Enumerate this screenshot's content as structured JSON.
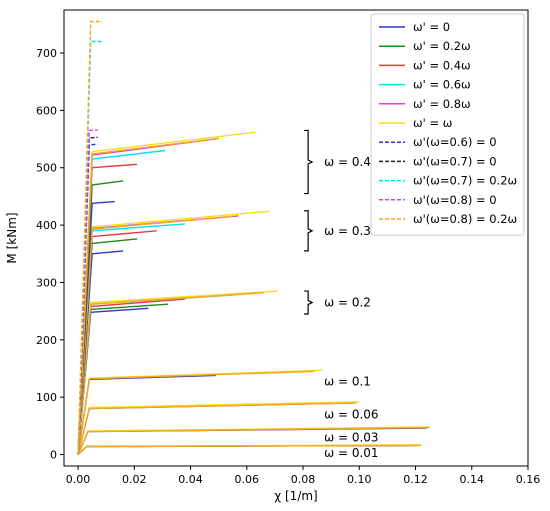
{
  "chart_data": {
    "type": "line",
    "xlabel": "χ [1/m]",
    "ylabel": "M [kNm]",
    "xlim": [
      -0.005,
      0.16
    ],
    "ylim": [
      -20,
      775
    ],
    "xticks": [
      "0.00",
      "0.02",
      "0.04",
      "0.06",
      "0.08",
      "0.10",
      "0.12",
      "0.14",
      "0.16"
    ],
    "yticks": [
      "0",
      "100",
      "200",
      "300",
      "400",
      "500",
      "600",
      "700"
    ],
    "xtick_values": [
      0,
      0.02,
      0.04,
      0.06,
      0.08,
      0.1,
      0.12,
      0.14,
      0.16
    ],
    "ytick_values": [
      0,
      100,
      200,
      300,
      400,
      500,
      600,
      700
    ],
    "grid": false,
    "legend_position": "top-right",
    "legend": [
      {
        "label": "ω' = 0",
        "color": "#3333cc",
        "style": "solid"
      },
      {
        "label": "ω' = 0.2ω",
        "color": "#1a8c1a",
        "style": "solid"
      },
      {
        "label": "ω' = 0.4ω",
        "color": "#e83a3a",
        "style": "solid"
      },
      {
        "label": "ω' = 0.6ω",
        "color": "#00e5e5",
        "style": "solid"
      },
      {
        "label": "ω' = 0.8ω",
        "color": "#e040e0",
        "style": "solid"
      },
      {
        "label": "ω' = ω",
        "color": "#f2e020",
        "style": "solid"
      },
      {
        "label": "ω'(ω=0.6) = 0",
        "color": "#3333cc",
        "style": "dashed"
      },
      {
        "label": "ω'(ω=0.7) = 0",
        "color": "#222222",
        "style": "dashed"
      },
      {
        "label": "ω'(ω=0.7) = 0.2ω",
        "color": "#00e5e5",
        "style": "dashed"
      },
      {
        "label": "ω'(ω=0.8) = 0",
        "color": "#e040e0",
        "style": "dashed"
      },
      {
        "label": "ω'(ω=0.8) = 0.2ω",
        "color": "#f5a623",
        "style": "dashed"
      }
    ],
    "annotations": [
      {
        "text": "ω = 0.4",
        "x": 0.0875,
        "y": 510,
        "bracket": [
          455,
          565
        ]
      },
      {
        "text": "ω = 0.3",
        "x": 0.0875,
        "y": 390,
        "bracket": [
          355,
          425
        ]
      },
      {
        "text": "ω = 0.2",
        "x": 0.0875,
        "y": 265,
        "bracket": [
          245,
          285
        ]
      },
      {
        "text": "ω = 0.1",
        "x": 0.0875,
        "y": 127
      },
      {
        "text": "ω = 0.06",
        "x": 0.0875,
        "y": 70
      },
      {
        "text": "ω = 0.03",
        "x": 0.0875,
        "y": 30
      },
      {
        "text": "ω = 0.01",
        "x": 0.0875,
        "y": 3
      }
    ],
    "series": [
      {
        "group": "ω = 0.01",
        "color": "#3333cc",
        "style": "solid",
        "x": [
          0,
          0.003,
          0.12
        ],
        "y": [
          0,
          14,
          16
        ]
      },
      {
        "group": "ω = 0.01",
        "color": "#1a8c1a",
        "style": "solid",
        "x": [
          0,
          0.003,
          0.121
        ],
        "y": [
          0,
          14,
          16
        ]
      },
      {
        "group": "ω = 0.01",
        "color": "#f2e020",
        "style": "solid",
        "x": [
          0,
          0.003,
          0.122
        ],
        "y": [
          0,
          14,
          17
        ]
      },
      {
        "group": "ω = 0.01",
        "color": "#f5a623",
        "style": "solid",
        "x": [
          0,
          0.003,
          0.122
        ],
        "y": [
          0,
          14,
          16
        ]
      },
      {
        "group": "ω = 0.03",
        "color": "#3333cc",
        "style": "solid",
        "x": [
          0,
          0.0035,
          0.124
        ],
        "y": [
          0,
          40,
          46
        ]
      },
      {
        "group": "ω = 0.03",
        "color": "#f2e020",
        "style": "solid",
        "x": [
          0,
          0.0035,
          0.125
        ],
        "y": [
          0,
          41,
          48
        ]
      },
      {
        "group": "ω = 0.03",
        "color": "#f5a623",
        "style": "solid",
        "x": [
          0,
          0.0035,
          0.125
        ],
        "y": [
          0,
          40,
          47
        ]
      },
      {
        "group": "ω = 0.06",
        "color": "#3333cc",
        "style": "solid",
        "x": [
          0,
          0.004,
          0.098
        ],
        "y": [
          0,
          80,
          90
        ]
      },
      {
        "group": "ω = 0.06",
        "color": "#f2e020",
        "style": "solid",
        "x": [
          0,
          0.004,
          0.1
        ],
        "y": [
          0,
          82,
          92
        ]
      },
      {
        "group": "ω = 0.06",
        "color": "#f5a623",
        "style": "solid",
        "x": [
          0,
          0.004,
          0.099
        ],
        "y": [
          0,
          80,
          90
        ]
      },
      {
        "group": "ω = 0.1",
        "color": "#3333cc",
        "style": "solid",
        "x": [
          0,
          0.004,
          0.049
        ],
        "y": [
          0,
          131,
          138
        ]
      },
      {
        "group": "ω = 0.1",
        "color": "#f2e020",
        "style": "solid",
        "x": [
          0,
          0.004,
          0.087
        ],
        "y": [
          0,
          133,
          147
        ]
      },
      {
        "group": "ω = 0.1",
        "color": "#f5a623",
        "style": "solid",
        "x": [
          0,
          0.004,
          0.084
        ],
        "y": [
          0,
          132,
          145
        ]
      },
      {
        "group": "ω = 0.2",
        "color": "#3333cc",
        "style": "solid",
        "x": [
          0,
          0.0045,
          0.025
        ],
        "y": [
          0,
          248,
          255
        ]
      },
      {
        "group": "ω = 0.2",
        "color": "#1a8c1a",
        "style": "solid",
        "x": [
          0,
          0.0045,
          0.032
        ],
        "y": [
          0,
          253,
          262
        ]
      },
      {
        "group": "ω = 0.2",
        "color": "#e83a3a",
        "style": "solid",
        "x": [
          0,
          0.0045,
          0.038
        ],
        "y": [
          0,
          258,
          271
        ]
      },
      {
        "group": "ω = 0.2",
        "color": "#00e5e5",
        "style": "solid",
        "x": [
          0,
          0.0045,
          0.055
        ],
        "y": [
          0,
          262,
          278
        ]
      },
      {
        "group": "ω = 0.2",
        "color": "#f2e020",
        "style": "solid",
        "x": [
          0,
          0.0045,
          0.071
        ],
        "y": [
          0,
          265,
          285
        ]
      },
      {
        "group": "ω = 0.2",
        "color": "#f5a623",
        "style": "solid",
        "x": [
          0,
          0.0045,
          0.066
        ],
        "y": [
          0,
          262,
          282
        ]
      },
      {
        "group": "ω = 0.3",
        "color": "#3333cc",
        "style": "solid",
        "x": [
          0,
          0.005,
          0.016
        ],
        "y": [
          0,
          350,
          355
        ]
      },
      {
        "group": "ω = 0.3",
        "color": "#1a8c1a",
        "style": "solid",
        "x": [
          0,
          0.005,
          0.021
        ],
        "y": [
          0,
          368,
          376
        ]
      },
      {
        "group": "ω = 0.3",
        "color": "#e83a3a",
        "style": "solid",
        "x": [
          0,
          0.005,
          0.028
        ],
        "y": [
          0,
          380,
          390
        ]
      },
      {
        "group": "ω = 0.3",
        "color": "#00e5e5",
        "style": "solid",
        "x": [
          0,
          0.005,
          0.038
        ],
        "y": [
          0,
          390,
          402
        ]
      },
      {
        "group": "ω = 0.3",
        "color": "#e040e0",
        "style": "solid",
        "x": [
          0,
          0.005,
          0.057
        ],
        "y": [
          0,
          394,
          416
        ]
      },
      {
        "group": "ω = 0.3",
        "color": "#f2e020",
        "style": "solid",
        "x": [
          0,
          0.005,
          0.068
        ],
        "y": [
          0,
          397,
          424
        ]
      },
      {
        "group": "ω = 0.3",
        "color": "#f5a623",
        "style": "solid",
        "x": [
          0,
          0.005,
          0.055
        ],
        "y": [
          0,
          393,
          415
        ]
      },
      {
        "group": "ω = 0.4",
        "color": "#3333cc",
        "style": "solid",
        "x": [
          0,
          0.005,
          0.013
        ],
        "y": [
          0,
          438,
          441
        ]
      },
      {
        "group": "ω = 0.4",
        "color": "#1a8c1a",
        "style": "solid",
        "x": [
          0,
          0.005,
          0.016
        ],
        "y": [
          0,
          470,
          477
        ]
      },
      {
        "group": "ω = 0.4",
        "color": "#e83a3a",
        "style": "solid",
        "x": [
          0,
          0.005,
          0.021
        ],
        "y": [
          0,
          500,
          506
        ]
      },
      {
        "group": "ω = 0.4",
        "color": "#00e5e5",
        "style": "solid",
        "x": [
          0,
          0.005,
          0.031
        ],
        "y": [
          0,
          515,
          530
        ]
      },
      {
        "group": "ω = 0.4",
        "color": "#e040e0",
        "style": "solid",
        "x": [
          0,
          0.005,
          0.05
        ],
        "y": [
          0,
          522,
          551
        ]
      },
      {
        "group": "ω = 0.4",
        "color": "#f2e020",
        "style": "solid",
        "x": [
          0,
          0.005,
          0.063
        ],
        "y": [
          0,
          528,
          562
        ]
      },
      {
        "group": "ω = 0.4",
        "color": "#f5a623",
        "style": "solid",
        "x": [
          0,
          0.005,
          0.05
        ],
        "y": [
          0,
          524,
          551
        ]
      },
      {
        "group": "ω = 0.6",
        "color": "#3333cc",
        "style": "dashed",
        "x": [
          0,
          0.004,
          0.007
        ],
        "y": [
          0,
          540,
          541
        ]
      },
      {
        "group": "ω = 0.7",
        "color": "#222222",
        "style": "dashed",
        "x": [
          0,
          0.004,
          0.007
        ],
        "y": [
          0,
          552,
          553
        ]
      },
      {
        "group": "ω = 0.8",
        "color": "#e040e0",
        "style": "dashed",
        "x": [
          0,
          0.004,
          0.007
        ],
        "y": [
          0,
          565,
          566
        ]
      },
      {
        "group": "ω = 0.7",
        "color": "#00e5e5",
        "style": "dashed",
        "x": [
          0,
          0.0045,
          0.0085
        ],
        "y": [
          0,
          720,
          720
        ]
      },
      {
        "group": "ω = 0.8",
        "color": "#f5a623",
        "style": "dashed",
        "x": [
          0,
          0.0045,
          0.0085
        ],
        "y": [
          0,
          755,
          755
        ]
      }
    ]
  }
}
